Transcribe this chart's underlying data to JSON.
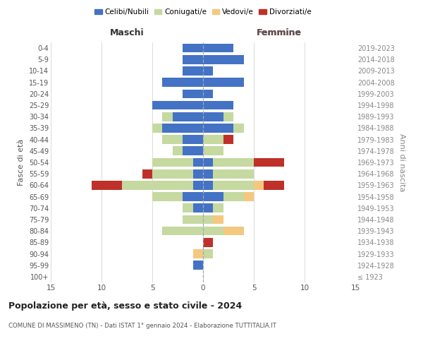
{
  "age_groups": [
    "100+",
    "95-99",
    "90-94",
    "85-89",
    "80-84",
    "75-79",
    "70-74",
    "65-69",
    "60-64",
    "55-59",
    "50-54",
    "45-49",
    "40-44",
    "35-39",
    "30-34",
    "25-29",
    "20-24",
    "15-19",
    "10-14",
    "5-9",
    "0-4"
  ],
  "birth_years": [
    "≤ 1923",
    "1924-1928",
    "1929-1933",
    "1934-1938",
    "1939-1943",
    "1944-1948",
    "1949-1953",
    "1954-1958",
    "1959-1963",
    "1964-1968",
    "1969-1973",
    "1974-1978",
    "1979-1983",
    "1984-1988",
    "1989-1993",
    "1994-1998",
    "1999-2003",
    "2004-2008",
    "2009-2013",
    "2014-2018",
    "2019-2023"
  ],
  "males": {
    "celibi": [
      0,
      1,
      0,
      0,
      0,
      0,
      1,
      2,
      1,
      1,
      1,
      2,
      2,
      4,
      3,
      5,
      2,
      4,
      2,
      2,
      2
    ],
    "coniugati": [
      0,
      0,
      0,
      0,
      4,
      2,
      1,
      3,
      7,
      4,
      4,
      1,
      2,
      1,
      1,
      0,
      0,
      0,
      0,
      0,
      0
    ],
    "vedovi": [
      0,
      0,
      1,
      0,
      0,
      0,
      0,
      0,
      0,
      0,
      0,
      0,
      0,
      0,
      0,
      0,
      0,
      0,
      0,
      0,
      0
    ],
    "divorziati": [
      0,
      0,
      0,
      0,
      0,
      0,
      0,
      0,
      3,
      1,
      0,
      0,
      0,
      0,
      0,
      0,
      0,
      0,
      0,
      0,
      0
    ]
  },
  "females": {
    "nubili": [
      0,
      0,
      0,
      0,
      0,
      0,
      1,
      2,
      1,
      1,
      1,
      0,
      0,
      3,
      2,
      3,
      1,
      4,
      1,
      4,
      3
    ],
    "coniugate": [
      0,
      0,
      1,
      0,
      2,
      1,
      1,
      2,
      4,
      4,
      4,
      2,
      2,
      1,
      1,
      0,
      0,
      0,
      0,
      0,
      0
    ],
    "vedove": [
      0,
      0,
      0,
      0,
      2,
      1,
      0,
      1,
      1,
      0,
      0,
      0,
      0,
      0,
      0,
      0,
      0,
      0,
      0,
      0,
      0
    ],
    "divorziate": [
      0,
      0,
      0,
      1,
      0,
      0,
      0,
      0,
      2,
      0,
      3,
      0,
      1,
      0,
      0,
      0,
      0,
      0,
      0,
      0,
      0
    ]
  },
  "colors": {
    "celibi_nubili": "#4472c4",
    "coniugati": "#c5d9a0",
    "vedovi": "#f4c87e",
    "divorziati": "#c0302a"
  },
  "title": "Popolazione per età, sesso e stato civile - 2024",
  "subtitle": "COMUNE DI MASSIMENO (TN) - Dati ISTAT 1° gennaio 2024 - Elaborazione TUTTITALIA.IT",
  "xlabel_left": "Maschi",
  "xlabel_right": "Femmine",
  "ylabel_left": "Fasce di età",
  "ylabel_right": "Anni di nascita",
  "xlim": 15,
  "background_color": "#ffffff",
  "grid_color": "#cccccc"
}
